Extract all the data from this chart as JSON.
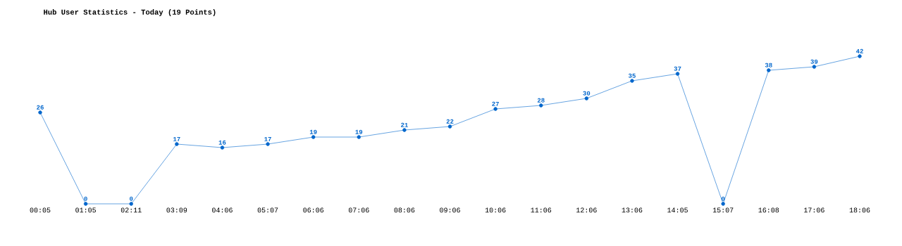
{
  "chart_data": {
    "type": "line",
    "title": "Hub User Statistics - Today (19 Points)",
    "categories": [
      "00:05",
      "01:05",
      "02:11",
      "03:09",
      "04:06",
      "05:07",
      "06:06",
      "07:06",
      "08:06",
      "09:06",
      "10:06",
      "11:06",
      "12:06",
      "13:06",
      "14:05",
      "15:07",
      "16:08",
      "17:06",
      "18:06"
    ],
    "values": [
      26,
      0,
      0,
      17,
      16,
      17,
      19,
      19,
      21,
      22,
      27,
      28,
      30,
      35,
      37,
      0,
      38,
      39,
      42
    ],
    "color": "#0066cc",
    "marker": "circle",
    "data_labels": true
  }
}
